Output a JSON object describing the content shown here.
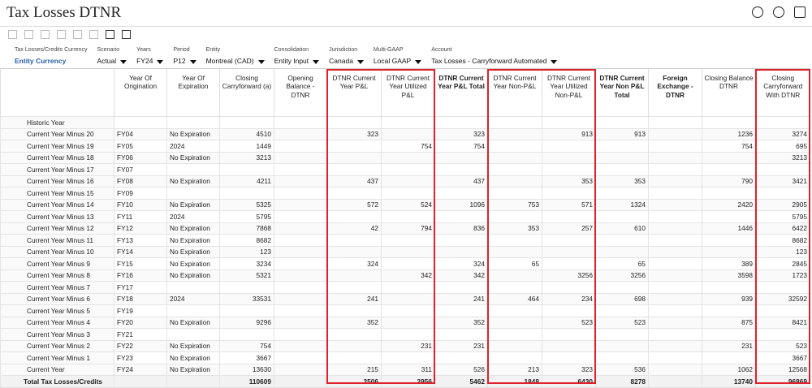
{
  "header": {
    "title": "Tax Losses DTNR"
  },
  "pov": [
    {
      "label": "Tax Losses/Credits Currency",
      "value": "Entity Currency"
    },
    {
      "label": "Scenario",
      "value": "Actual"
    },
    {
      "label": "Years",
      "value": "FY24"
    },
    {
      "label": "Period",
      "value": "P12"
    },
    {
      "label": "Entity",
      "value": "Montreal (CAD)"
    },
    {
      "label": "Consolidation",
      "value": "Entity Input"
    },
    {
      "label": "Jurisdiction",
      "value": "Canada"
    },
    {
      "label": "Multi-GAAP",
      "value": "Local GAAP"
    },
    {
      "label": "Account",
      "value": "Tax Losses - Carryforward Automated"
    }
  ],
  "table": {
    "columns": [
      "Year Of Origination",
      "Year Of Expiration",
      "Closing Carryforward (a)",
      "Opening Balance - DTNR",
      "DTNR Current Year P&L",
      "DTNR Current Year Utilized P&L",
      "DTNR Current Year P&L Total",
      "DTNR Current Year Non-P&L",
      "DTNR Current Year Utilized Non-P&L",
      "DTNR Current Year Non P&L Total",
      "Foreign Exchange - DTNR",
      "Closing Balance DTNR",
      "Closing Carryforward With DTNR"
    ],
    "rows": [
      {
        "label": "Historic Year",
        "cells": [
          null,
          null,
          null,
          null,
          null,
          null,
          null,
          null,
          null,
          null,
          null,
          null,
          null
        ]
      },
      {
        "label": "Current Year Minus 20",
        "cells": [
          "FY04",
          "No Expiration",
          4510,
          null,
          323,
          null,
          323,
          null,
          913,
          913,
          null,
          1236,
          3274
        ]
      },
      {
        "label": "Current Year Minus 19",
        "cells": [
          "FY05",
          "2024",
          1449,
          null,
          null,
          754,
          754,
          null,
          null,
          null,
          null,
          754,
          695
        ]
      },
      {
        "label": "Current Year Minus 18",
        "cells": [
          "FY06",
          "No Expiration",
          3213,
          null,
          null,
          null,
          null,
          null,
          null,
          null,
          null,
          null,
          3213
        ]
      },
      {
        "label": "Current Year Minus 17",
        "cells": [
          "FY07",
          null,
          null,
          null,
          null,
          null,
          null,
          null,
          null,
          null,
          null,
          null,
          null
        ]
      },
      {
        "label": "Current Year Minus 16",
        "cells": [
          "FY08",
          "No Expiration",
          4211,
          null,
          437,
          null,
          437,
          null,
          353,
          353,
          null,
          790,
          3421
        ]
      },
      {
        "label": "Current Year Minus 15",
        "cells": [
          "FY09",
          null,
          null,
          null,
          null,
          null,
          null,
          null,
          null,
          null,
          null,
          null,
          null
        ]
      },
      {
        "label": "Current Year Minus 14",
        "cells": [
          "FY10",
          "No Expiration",
          5325,
          null,
          572,
          524,
          1096,
          753,
          571,
          1324,
          null,
          2420,
          2905
        ]
      },
      {
        "label": "Current Year Minus 13",
        "cells": [
          "FY11",
          "2024",
          5795,
          null,
          null,
          null,
          null,
          null,
          null,
          null,
          null,
          null,
          5795
        ]
      },
      {
        "label": "Current Year Minus 12",
        "cells": [
          "FY12",
          "No Expiration",
          7868,
          null,
          42,
          794,
          836,
          353,
          257,
          610,
          null,
          1446,
          6422
        ]
      },
      {
        "label": "Current Year Minus 11",
        "cells": [
          "FY13",
          "No Expiration",
          8682,
          null,
          null,
          null,
          null,
          null,
          null,
          null,
          null,
          null,
          8682
        ]
      },
      {
        "label": "Current Year Minus 10",
        "cells": [
          "FY14",
          "No Expiration",
          123,
          null,
          null,
          null,
          null,
          null,
          null,
          null,
          null,
          null,
          123
        ]
      },
      {
        "label": "Current Year Minus 9",
        "cells": [
          "FY15",
          "No Expiration",
          3234,
          null,
          324,
          null,
          324,
          65,
          null,
          65,
          null,
          389,
          2845
        ]
      },
      {
        "label": "Current Year Minus 8",
        "cells": [
          "FY16",
          "No Expiration",
          5321,
          null,
          null,
          342,
          342,
          null,
          3256,
          3256,
          null,
          3598,
          1723
        ]
      },
      {
        "label": "Current Year Minus 7",
        "cells": [
          "FY17",
          null,
          null,
          null,
          null,
          null,
          null,
          null,
          null,
          null,
          null,
          null,
          null
        ]
      },
      {
        "label": "Current Year Minus 6",
        "cells": [
          "FY18",
          "2024",
          33531,
          null,
          241,
          null,
          241,
          464,
          234,
          698,
          null,
          939,
          32592
        ]
      },
      {
        "label": "Current Year Minus 5",
        "cells": [
          "FY19",
          null,
          null,
          null,
          null,
          null,
          null,
          null,
          null,
          null,
          null,
          null,
          null
        ]
      },
      {
        "label": "Current Year Minus 4",
        "cells": [
          "FY20",
          "No Expiration",
          9296,
          null,
          352,
          null,
          352,
          null,
          523,
          523,
          null,
          875,
          8421
        ]
      },
      {
        "label": "Current Year Minus 3",
        "cells": [
          "FY21",
          null,
          null,
          null,
          null,
          null,
          null,
          null,
          null,
          null,
          null,
          null,
          null
        ]
      },
      {
        "label": "Current Year Minus 2",
        "cells": [
          "FY22",
          "No Expiration",
          754,
          null,
          null,
          231,
          231,
          null,
          null,
          null,
          null,
          231,
          523
        ]
      },
      {
        "label": "Current Year Minus 1",
        "cells": [
          "FY23",
          "No Expiration",
          3667,
          null,
          null,
          null,
          null,
          null,
          null,
          null,
          null,
          null,
          3667
        ]
      },
      {
        "label": "Current Year",
        "cells": [
          "FY24",
          "No Expiration",
          13630,
          null,
          215,
          311,
          526,
          213,
          323,
          536,
          null,
          1062,
          12568
        ]
      }
    ],
    "total": {
      "label": "Total Tax Losses/Credits",
      "cells": [
        null,
        null,
        110609,
        null,
        2506,
        2956,
        5462,
        1848,
        6430,
        8278,
        null,
        13740,
        96869
      ]
    }
  }
}
